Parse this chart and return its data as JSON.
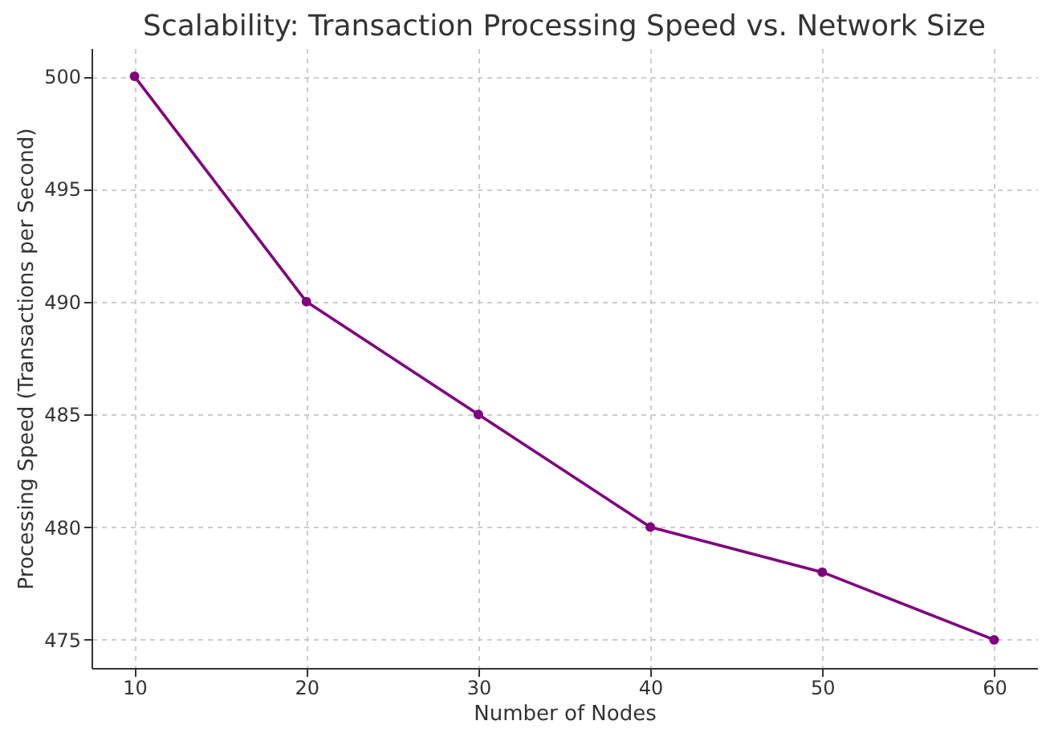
{
  "chart_data": {
    "type": "line",
    "title": "Scalability: Transaction Processing Speed vs. Network Size",
    "xlabel": "Number of Nodes",
    "ylabel": "Processing Speed (Transactions per Second)",
    "x": [
      10,
      20,
      30,
      40,
      50,
      60
    ],
    "series": [
      {
        "color": "#800080",
        "values": [
          500,
          490,
          485,
          480,
          478,
          475
        ]
      }
    ],
    "xlim": [
      7.5,
      62.5
    ],
    "xticks": [
      10,
      20,
      30,
      40,
      50,
      60
    ],
    "ylim": [
      473.75,
      501.25
    ],
    "yticks": [
      475,
      480,
      485,
      490,
      495,
      500
    ],
    "grid": true,
    "marker": "circle",
    "line_style": "solid"
  }
}
